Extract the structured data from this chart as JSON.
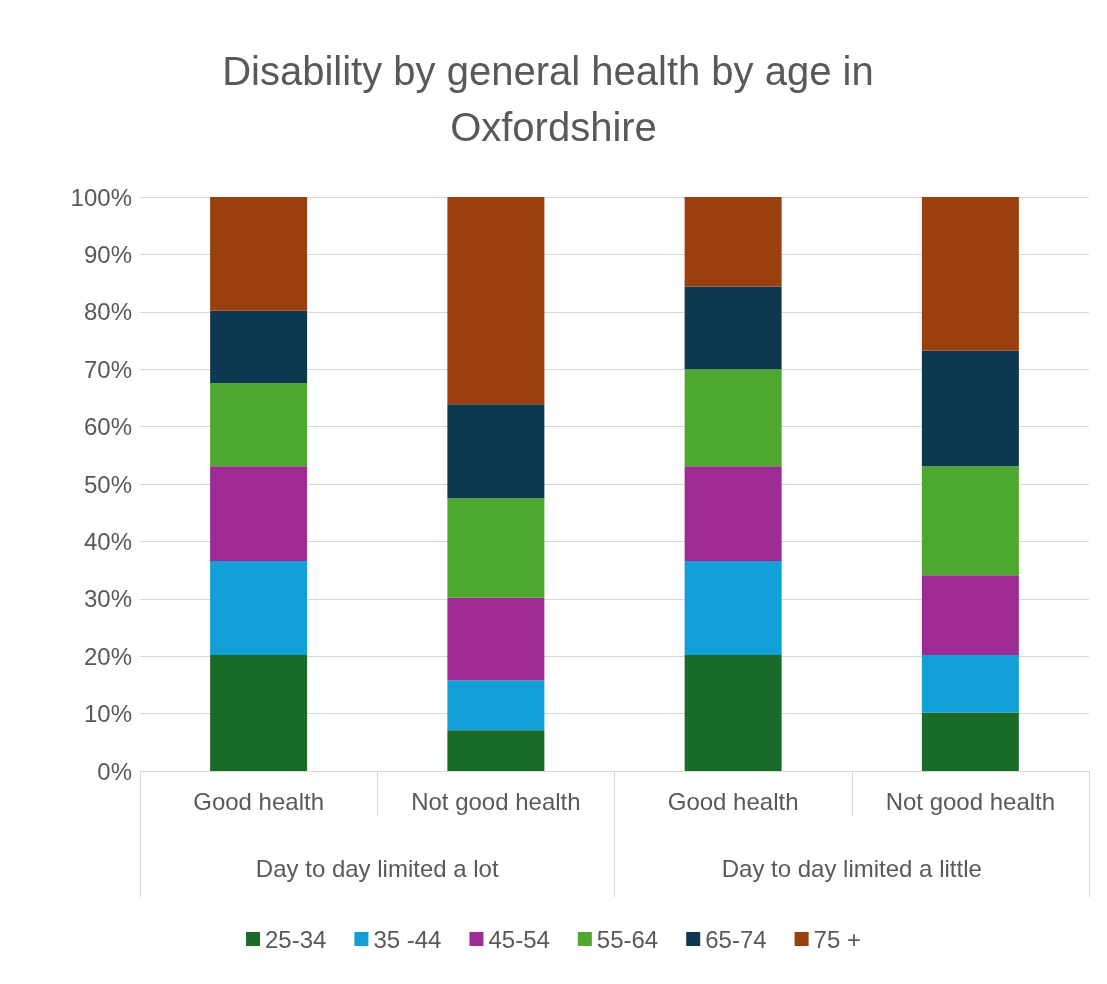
{
  "chart_data": {
    "type": "bar",
    "title": "Disability by general health by age in Oxfordshire",
    "stacked": true,
    "categories": [
      "Good health",
      "Not good health",
      "Good health",
      "Not good health"
    ],
    "annotations": [
      "Day to day limited a lot",
      "Day to day limited a little"
    ],
    "series": [
      {
        "name": "25-34",
        "color": "#1a6b27",
        "values": [
          20.2,
          7.1,
          20.2,
          10.2
        ]
      },
      {
        "name": "35 -44",
        "color": "#119fd6",
        "values": [
          16.4,
          8.7,
          16.4,
          10.0
        ]
      },
      {
        "name": "45-54",
        "color": "#9d2b93",
        "values": [
          16.5,
          14.4,
          16.5,
          13.9
        ]
      },
      {
        "name": "55-64",
        "color": "#4ea72e",
        "values": [
          14.5,
          17.3,
          16.9,
          19.0
        ]
      },
      {
        "name": "65-74",
        "color": "#0e384f",
        "values": [
          12.6,
          16.4,
          14.4,
          20.1
        ]
      },
      {
        "name": "75 +",
        "color": "#9a3f0e",
        "values": [
          19.8,
          36.1,
          15.6,
          26.8
        ]
      }
    ],
    "ylim": [
      0,
      100
    ],
    "yticks": [
      {
        "value": 0,
        "label": "0%"
      },
      {
        "value": 10,
        "label": "10%"
      },
      {
        "value": 20,
        "label": "20%"
      },
      {
        "value": 30,
        "label": "30%"
      },
      {
        "value": 40,
        "label": "40%"
      },
      {
        "value": 50,
        "label": "50%"
      },
      {
        "value": 60,
        "label": "60%"
      },
      {
        "value": 70,
        "label": "70%"
      },
      {
        "value": 80,
        "label": "80%"
      },
      {
        "value": 90,
        "label": "90%"
      },
      {
        "value": 100,
        "label": "100%"
      }
    ],
    "grid": "y",
    "legend": "bottom"
  }
}
